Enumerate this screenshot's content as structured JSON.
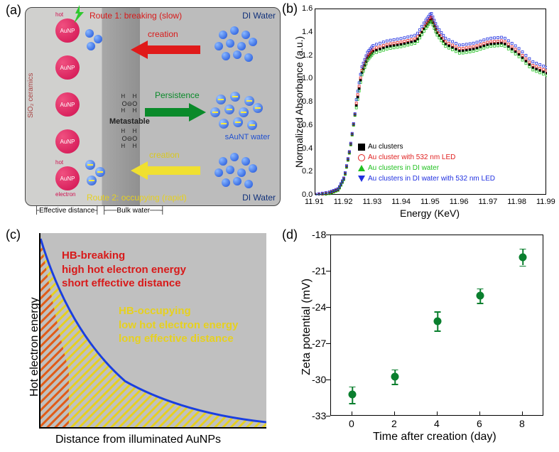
{
  "panel_a": {
    "label": "(a)",
    "sio2_label": "SiO₂ ceramics",
    "aunp_label": "AuNP",
    "hot_label_top": "hot",
    "hot_label_bot": "electron",
    "route1": "Route 1: breaking (slow)",
    "route2": "Route 2: occupying (rapid)",
    "creation_red": "creation",
    "persistence": "Persistence",
    "creation_yellow": "creation",
    "di_water": "DI Water",
    "saunt_water": "sAuNT water",
    "metastable": "Metastable",
    "metastable_mol": [
      "H   H",
      "O⊖",
      "H   H",
      "O⊖",
      "H   H"
    ],
    "effective_distance": "Effective distance",
    "bulk_water": "Bulk water",
    "colors": {
      "route1": "#d81a1a",
      "persistence": "#0a8a2a",
      "route2": "#e6d020",
      "aunp": "#d01050",
      "water_ball": "#1a4fd8",
      "di_water_text": "#10307a"
    }
  },
  "panel_b": {
    "label": "(b)",
    "ylabel": "Normalized Absorbance (a.u.)",
    "xlabel": "Energy (KeV)",
    "xlim": [
      11.91,
      11.99
    ],
    "ylim": [
      0.0,
      1.6
    ],
    "xticks": [
      "11.91",
      "11.92",
      "11.93",
      "11.94",
      "11.95",
      "11.96",
      "11.97",
      "11.98",
      "11.99"
    ],
    "yticks": [
      "0.0",
      "0.2",
      "0.4",
      "0.6",
      "0.8",
      "1.0",
      "1.2",
      "1.4",
      "1.6"
    ],
    "series": [
      {
        "name": "Au clusters",
        "color": "#000000",
        "marker": "square-filled"
      },
      {
        "name": "Au cluster with 532 nm LED",
        "color": "#e02020",
        "marker": "circle-open"
      },
      {
        "name": "Au clusters in DI water",
        "color": "#20c020",
        "marker": "triangle-open"
      },
      {
        "name": "Au clusters in DI water with 532 nm LED",
        "color": "#2030e0",
        "marker": "triangle-down-open"
      }
    ],
    "curve_points": [
      [
        11.91,
        0.0
      ],
      [
        11.915,
        0.02
      ],
      [
        11.918,
        0.05
      ],
      [
        11.92,
        0.15
      ],
      [
        11.922,
        0.4
      ],
      [
        11.924,
        0.75
      ],
      [
        11.926,
        1.05
      ],
      [
        11.928,
        1.18
      ],
      [
        11.93,
        1.24
      ],
      [
        11.935,
        1.28
      ],
      [
        11.94,
        1.3
      ],
      [
        11.945,
        1.33
      ],
      [
        11.948,
        1.45
      ],
      [
        11.95,
        1.52
      ],
      [
        11.952,
        1.4
      ],
      [
        11.955,
        1.3
      ],
      [
        11.96,
        1.24
      ],
      [
        11.965,
        1.26
      ],
      [
        11.97,
        1.3
      ],
      [
        11.975,
        1.31
      ],
      [
        11.98,
        1.22
      ],
      [
        11.985,
        1.1
      ],
      [
        11.99,
        1.05
      ]
    ]
  },
  "panel_c": {
    "label": "(c)",
    "ylabel": "Hot electron energy",
    "xlabel": "Distance from illuminated AuNPs",
    "text_red": [
      "HB-breaking",
      "high hot electron energy",
      "short effective distance"
    ],
    "text_yellow": [
      "HB-occupying",
      "low hot electron energy",
      "long effective distance"
    ],
    "colors": {
      "bg": "#c0c0c0",
      "curve": "#1a3fe0",
      "red_text": "#d81a1a",
      "yellow_text": "#e6d020",
      "hatch_red": "#e05a1a",
      "hatch_yellow": "#e6d020"
    }
  },
  "panel_d": {
    "label": "(d)",
    "ylabel": "Zeta potential (mV)",
    "xlabel": "Time after creation (day)",
    "xlim": [
      -1,
      9
    ],
    "ylim": [
      -33,
      -18
    ],
    "xticks": [
      "0",
      "2",
      "4",
      "6",
      "8"
    ],
    "yticks": [
      "-33",
      "-30",
      "-27",
      "-24",
      "-21",
      "-18"
    ],
    "points": [
      {
        "x": 0,
        "y": -31.2,
        "err": 0.7
      },
      {
        "x": 2,
        "y": -29.7,
        "err": 0.6
      },
      {
        "x": 4,
        "y": -25.1,
        "err": 0.8
      },
      {
        "x": 6,
        "y": -23.0,
        "err": 0.6
      },
      {
        "x": 8,
        "y": -19.8,
        "err": 0.7
      }
    ],
    "color": "#0a7f2e"
  }
}
